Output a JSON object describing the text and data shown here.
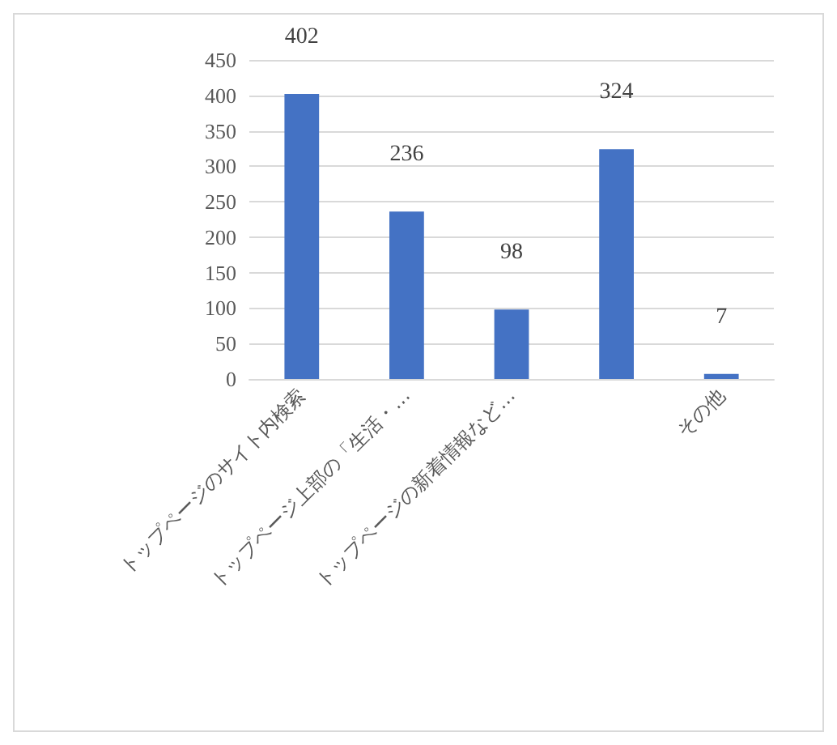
{
  "chart_data": {
    "type": "bar",
    "categories": [
      "トップページのサイト内検索",
      "トップページ上部の「生活・…",
      "トップページの新着情報など…",
      null,
      "その他"
    ],
    "values": [
      402,
      236,
      98,
      324,
      7
    ],
    "color": "#4472c4",
    "ylim": [
      0,
      450
    ],
    "yticks": [
      0,
      50,
      100,
      150,
      200,
      250,
      300,
      350,
      400,
      450
    ],
    "grid": "y",
    "data_labels": true
  }
}
